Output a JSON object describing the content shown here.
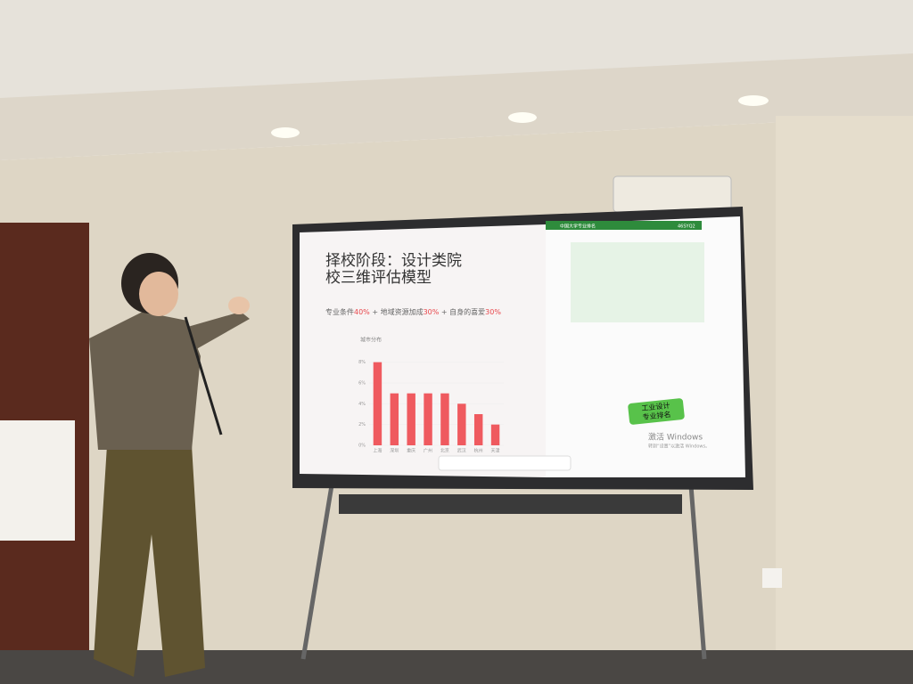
{
  "slide": {
    "title_lines": [
      "择校阶段：设计类院",
      "校三维评估模型"
    ],
    "formula": [
      "专业条件",
      "40%",
      " + 地域资源加成",
      "30%",
      " + 自身的喜爱",
      "30%"
    ]
  },
  "chart_data": {
    "type": "bar",
    "title": "城市分布",
    "categories": [
      "上海",
      "深圳",
      "重庆",
      "广州",
      "北京",
      "武汉",
      "杭州",
      "天津"
    ],
    "values": [
      8,
      5,
      5,
      5,
      5,
      4,
      3,
      2
    ],
    "color": "#ef5a5f",
    "ylim": [
      0,
      9
    ],
    "yticks": [
      {
        "value": 0,
        "label": "0%"
      },
      {
        "value": 2,
        "label": "2%"
      },
      {
        "value": 4,
        "label": "4%"
      },
      {
        "value": 6,
        "label": "6%"
      },
      {
        "value": 8,
        "label": "8%"
      }
    ]
  },
  "ranking_panel": {
    "header": "中国大学专业排名",
    "code": "46SYQ2",
    "badge": [
      "工业设计",
      "专业排名"
    ]
  },
  "watermark": [
    "激活 Windows",
    "转到“设置”以激活 Windows。"
  ]
}
